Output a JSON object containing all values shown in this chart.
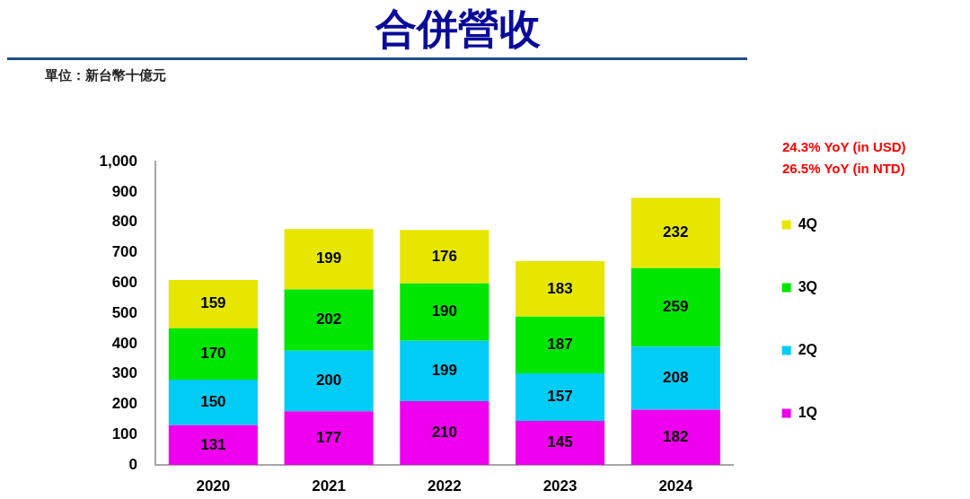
{
  "chart_data": {
    "type": "bar",
    "title": "合併營收",
    "subtitle": "單位：新台幣十億元",
    "categories": [
      "2020",
      "2021",
      "2022",
      "2023",
      "2024"
    ],
    "stacked": true,
    "series": [
      {
        "name": "1Q",
        "color": "#ee00ee",
        "values": [
          131,
          177,
          210,
          145,
          182
        ]
      },
      {
        "name": "2Q",
        "color": "#00ccf5",
        "values": [
          150,
          200,
          199,
          157,
          208
        ]
      },
      {
        "name": "3Q",
        "color": "#00e600",
        "values": [
          170,
          202,
          190,
          187,
          259
        ]
      },
      {
        "name": "4Q",
        "color": "#e6e600",
        "values": [
          159,
          199,
          176,
          183,
          232
        ]
      }
    ],
    "ylim": [
      0,
      1000
    ],
    "yticks": [
      0,
      100,
      200,
      300,
      400,
      500,
      600,
      700,
      800,
      900,
      {
        "value": 1000,
        "label": "1,000"
      }
    ],
    "data_labels": true,
    "legend": "right",
    "annotations": [
      "24.3% YoY (in USD)",
      "26.5% YoY (in NTD)"
    ]
  }
}
